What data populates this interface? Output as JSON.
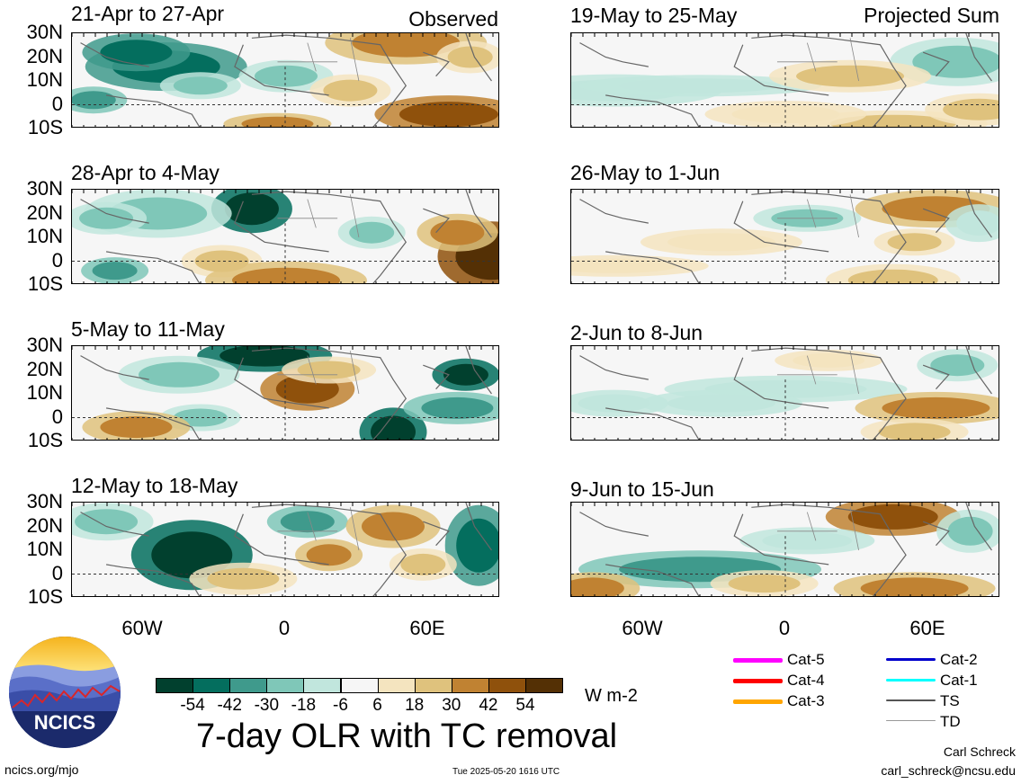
{
  "header": {
    "observed_label": "Observed",
    "projected_label": "Projected Sum"
  },
  "panels_left": [
    {
      "period": "21-Apr to 27-Apr"
    },
    {
      "period": "28-Apr to 4-May"
    },
    {
      "period": "5-May to 11-May"
    },
    {
      "period": "12-May to 18-May"
    }
  ],
  "panels_right": [
    {
      "period": "19-May to 25-May"
    },
    {
      "period": "26-May to 1-Jun"
    },
    {
      "period": "2-Jun to 8-Jun"
    },
    {
      "period": "9-Jun to 15-Jun"
    }
  ],
  "latitude_labels": [
    "30N",
    "20N",
    "10N",
    "0",
    "10S"
  ],
  "longitude_labels": [
    "60W",
    "0",
    "60E"
  ],
  "colorbar": {
    "colors": [
      "#01402e",
      "#046e5e",
      "#3f9a8c",
      "#7fc7b8",
      "#c1e6dd",
      "#f6f6f6",
      "#f4e4bf",
      "#dfc27d",
      "#c08232",
      "#8f510c",
      "#543005"
    ],
    "tick_labels": [
      "-54",
      "-42",
      "-30",
      "-18",
      "-6",
      "6",
      "18",
      "30",
      "42",
      "54"
    ],
    "units": "W m-2"
  },
  "legend": {
    "items": [
      {
        "label": "Cat-5",
        "color": "#ff00ff"
      },
      {
        "label": "Cat-4",
        "color": "#ff0000"
      },
      {
        "label": "Cat-3",
        "color": "#ffa500"
      },
      {
        "label": "Cat-2",
        "color": "#0000cc"
      },
      {
        "label": "Cat-1",
        "color": "#00ffff"
      },
      {
        "label": "TS",
        "color": "#555555"
      },
      {
        "label": "TD",
        "color": "#999999"
      }
    ]
  },
  "footer": {
    "title": "7-day OLR with TC removal",
    "logo_text": "NCICS",
    "url": "ncics.org/mjo",
    "timestamp": "Tue 2025-05-20 1616 UTC",
    "author": "Carl Schreck",
    "email": "carl_schreck@ncsu.edu"
  }
}
